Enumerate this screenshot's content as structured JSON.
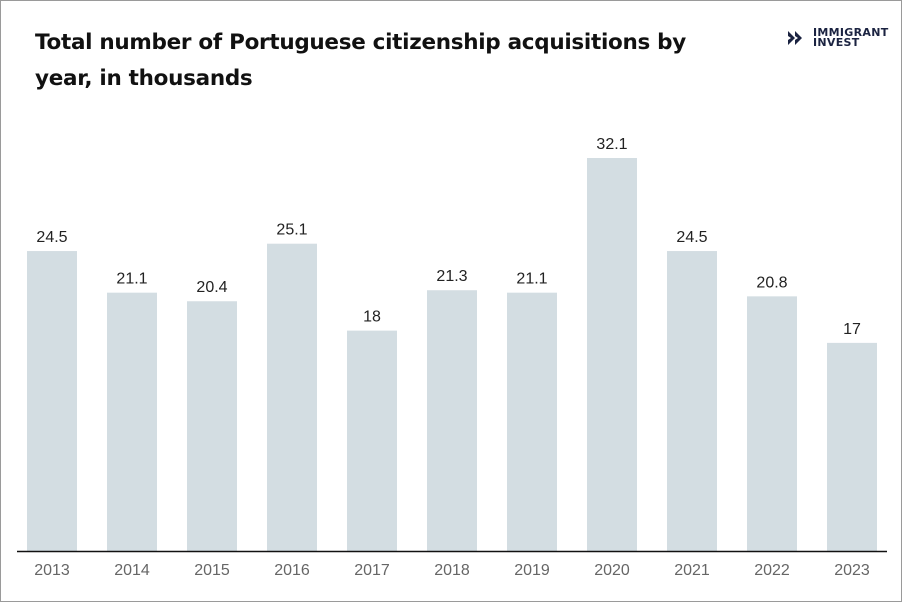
{
  "logo": {
    "line1": "IMMIGRANT",
    "line2": "INVEST",
    "color": "#1b2341"
  },
  "chart_data": {
    "type": "bar",
    "title": "Total number of Portuguese citizenship acquisitions by year, in thousands",
    "categories": [
      "2013",
      "2014",
      "2015",
      "2016",
      "2017",
      "2018",
      "2019",
      "2020",
      "2021",
      "2022",
      "2023"
    ],
    "values": [
      24.5,
      21.1,
      20.4,
      25.1,
      18,
      21.3,
      21.1,
      32.1,
      24.5,
      20.8,
      17
    ],
    "ylim": [
      0,
      32.1
    ],
    "grid": false,
    "bar_color": "#d3dde2",
    "axis_color": "#111111"
  }
}
